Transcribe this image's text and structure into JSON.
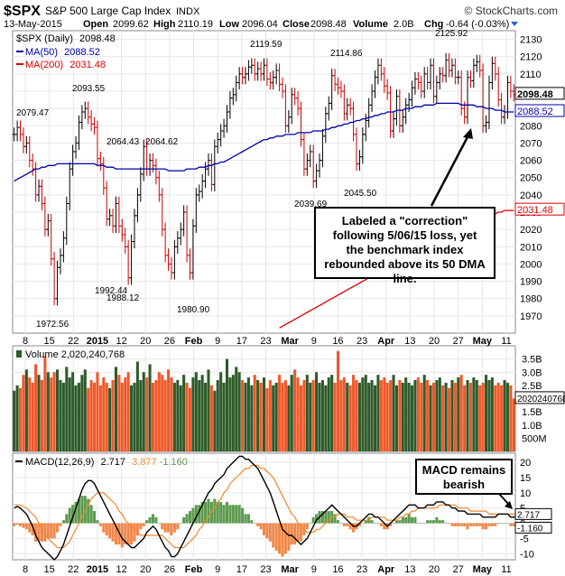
{
  "header": {
    "symbol": "$SPX",
    "name": "S&P 500 Large Cap Index",
    "exchange": "INDX",
    "date": "13-May-2015",
    "open_label": "Open",
    "open": "2099.62",
    "high_label": "High",
    "high": "2110.19",
    "low_label": "Low",
    "low": "2096.04",
    "close_label": "Close",
    "close": "2098.48",
    "volume_label": "Volume",
    "volume": "2.0B",
    "chg_label": "Chg",
    "chg": "-0.64 (-0.03%)",
    "watermark": "© StockCharts.com"
  },
  "colors": {
    "up": "#000000",
    "down": "#cc0000",
    "ma50": "#0000aa",
    "ma200": "#dd0000",
    "vol_up": "#2e5b2a",
    "vol_down": "#f0582a",
    "macd_line": "#000000",
    "signal_line": "#f0882a",
    "hist_pos": "#5d9a4f",
    "hist_neg": "#f0884a",
    "grid": "#e6e6e6"
  },
  "annotations": {
    "correction": "Labeled a \"correction\" following 5/06/15 loss, yet the benchmark index rebounded above its 50 DMA line.",
    "macd": "MACD remains bearish"
  },
  "chart_data": [
    {
      "type": "candlestick",
      "title": "$SPX (Daily) 2098.48",
      "legend": [
        {
          "name": "$SPX (Daily)",
          "value": "2098.48"
        },
        {
          "name": "MA(50)",
          "value": "2088.52"
        },
        {
          "name": "MA(200)",
          "value": "2031.48"
        }
      ],
      "ylim": [
        1960,
        2135
      ],
      "yticks": [
        1970,
        1980,
        1990,
        2000,
        2010,
        2020,
        2030,
        2040,
        2050,
        2060,
        2070,
        2080,
        2090,
        2100,
        2110,
        2120,
        2130
      ],
      "xticks": [
        "8",
        "15",
        "22",
        "2015",
        "12",
        "20",
        "26",
        "Feb",
        "9",
        "17",
        "23",
        "Mar",
        "9",
        "16",
        "23",
        "Apr",
        "13",
        "20",
        "27",
        "May",
        "11"
      ],
      "price_labels": [
        "2079.47",
        "2093.55",
        "1972.56",
        "1992.44",
        "2064.43",
        "1988.12",
        "2064.62",
        "1980.90",
        "2119.59",
        "2039.69",
        "2114.86",
        "2045.50",
        "2125.92"
      ],
      "last_price": "2098.48",
      "ma50_last": "2088.52",
      "ma200_last": "2031.48",
      "closes": [
        2075,
        2079,
        2075,
        2068,
        2070,
        2060,
        2055,
        2040,
        2045,
        2035,
        2020,
        2025,
        2003,
        1980,
        1998,
        2005,
        2015,
        2035,
        2055,
        2065,
        2070,
        2082,
        2088,
        2090,
        2085,
        2081,
        2079,
        2061,
        2058,
        2044,
        2026,
        2028,
        2022,
        2035,
        2022,
        2017,
        2010,
        1992,
        2013,
        2028,
        2040,
        2052,
        2068,
        2055,
        2060,
        2057,
        2050,
        2040,
        2020,
        2005,
        2000,
        1995,
        2010,
        2015,
        2020,
        2030,
        2005,
        1995,
        2022,
        2040,
        2042,
        2048,
        2055,
        2060,
        2046,
        2068,
        2072,
        2077,
        2080,
        2088,
        2096,
        2098,
        2105,
        2110,
        2108,
        2110,
        2114,
        2115,
        2110,
        2113,
        2110,
        2115,
        2107,
        2105,
        2108,
        2112,
        2104,
        2100,
        2080,
        2085,
        2098,
        2096,
        2090,
        2072,
        2055,
        2060,
        2065,
        2048,
        2054,
        2060,
        2074,
        2087,
        2093,
        2109,
        2104,
        2102,
        2100,
        2087,
        2092,
        2090,
        2075,
        2058,
        2062,
        2075,
        2083,
        2092,
        2100,
        2108,
        2115,
        2110,
        2103,
        2099,
        2077,
        2084,
        2097,
        2080,
        2085,
        2092,
        2095,
        2102,
        2107,
        2105,
        2100,
        2110,
        2105,
        2115,
        2097,
        2105,
        2110,
        2109,
        2118,
        2112,
        2115,
        2108,
        2108,
        2090,
        2085,
        2108,
        2106,
        2115,
        2117,
        2112,
        2080,
        2082,
        2105,
        2116,
        2110,
        2095,
        2085,
        2088,
        2105,
        2100,
        2098
      ],
      "ma50": [
        2048,
        2049,
        2050,
        2051,
        2052,
        2053,
        2054,
        2055,
        2055,
        2056,
        2056,
        2057,
        2057,
        2057,
        2058,
        2058,
        2058,
        2058,
        2058,
        2058,
        2058,
        2058,
        2058,
        2058,
        2058,
        2058,
        2058,
        2057,
        2057,
        2057,
        2056,
        2056,
        2056,
        2055,
        2055,
        2055,
        2055,
        2055,
        2055,
        2055,
        2055,
        2055,
        2055,
        2055,
        2055,
        2055,
        2055,
        2055,
        2055,
        2055,
        2054,
        2054,
        2054,
        2054,
        2054,
        2054,
        2055,
        2055,
        2055,
        2055,
        2056,
        2056,
        2056,
        2057,
        2057,
        2058,
        2058,
        2059,
        2059,
        2060,
        2061,
        2062,
        2063,
        2064,
        2065,
        2066,
        2067,
        2068,
        2069,
        2070,
        2071,
        2072,
        2072,
        2073,
        2073,
        2074,
        2074,
        2074,
        2075,
        2075,
        2075,
        2075,
        2076,
        2076,
        2076,
        2076,
        2076,
        2077,
        2077,
        2077,
        2077,
        2078,
        2078,
        2079,
        2079,
        2080,
        2080,
        2081,
        2081,
        2082,
        2082,
        2083,
        2083,
        2084,
        2084,
        2085,
        2085,
        2086,
        2086,
        2087,
        2087,
        2088,
        2088,
        2088,
        2089,
        2089,
        2089,
        2090,
        2090,
        2090,
        2091,
        2091,
        2091,
        2092,
        2092,
        2092,
        2092,
        2093,
        2093,
        2093,
        2093,
        2093,
        2093,
        2093,
        2093,
        2092,
        2092,
        2092,
        2092,
        2092,
        2091,
        2091,
        2091,
        2090,
        2090,
        2090,
        2089,
        2089,
        2089,
        2088,
        2088,
        2088,
        2088
      ],
      "ma200": [
        1963,
        1964,
        1965,
        1966,
        1967,
        1968,
        1969,
        1970,
        1971,
        1972,
        1973,
        1974,
        1975,
        1976,
        1977,
        1978,
        1979,
        1980,
        1981,
        1982,
        1983,
        1984,
        1985,
        1986,
        1987,
        1988,
        1989,
        1990,
        1991,
        1992,
        1993,
        1994,
        1995,
        1996,
        1997,
        1998,
        1999,
        2000,
        2001,
        2002,
        2003,
        2004,
        2005,
        2006,
        2007,
        2008,
        2009,
        2010,
        2011,
        2012,
        2013,
        2014,
        2015,
        2016,
        2017,
        2018,
        2019,
        2019,
        2020,
        2021,
        2022,
        2023,
        2023,
        2024,
        2025,
        2026,
        2026,
        2027,
        2028,
        2028,
        2029,
        2030,
        2030,
        2031,
        2031,
        2031,
        2031
      ]
    },
    {
      "type": "bar",
      "title": "Volume 2,020,240,768",
      "last_label": "2020240768",
      "ylim": [
        0,
        4.0
      ],
      "yticks": [
        "500M",
        "1.0B",
        "1.5B",
        "2.0B",
        "2.5B",
        "3.0B",
        "3.5B"
      ],
      "values": [
        2.3,
        2.5,
        2.4,
        2.9,
        3.1,
        2.8,
        2.6,
        3.3,
        2.9,
        2.7,
        3.6,
        3.0,
        2.8,
        3.0,
        3.1,
        2.7,
        2.6,
        3.2,
        2.8,
        3.0,
        2.5,
        2.6,
        2.9,
        3.1,
        2.4,
        2.7,
        2.6,
        3.0,
        2.5,
        2.8,
        2.6,
        2.4,
        2.7,
        3.2,
        2.9,
        2.6,
        2.8,
        3.0,
        2.5,
        2.6,
        3.4,
        2.7,
        3.0,
        2.8,
        3.3,
        2.6,
        2.7,
        3.0,
        2.9,
        2.7,
        3.1,
        2.8,
        2.6,
        2.7,
        2.5,
        2.9,
        2.6,
        2.4,
        2.8,
        3.0,
        2.7,
        2.9,
        2.6,
        3.1,
        2.5,
        2.3,
        2.7,
        3.0,
        2.6,
        3.5,
        2.8,
        2.9,
        3.2,
        3.0,
        2.7,
        2.6,
        2.8,
        2.5,
        2.9,
        2.7,
        2.6,
        2.8,
        2.4,
        2.7,
        2.5,
        2.6,
        2.9,
        2.6,
        2.7,
        2.5,
        2.9,
        3.1,
        2.8,
        2.5,
        2.7,
        2.9,
        2.6,
        2.7,
        3.0,
        2.6,
        2.7,
        2.5,
        2.8,
        2.9,
        2.6,
        3.8,
        2.7,
        2.8,
        2.6,
        2.5,
        2.9,
        2.7,
        2.6,
        2.8,
        2.9,
        2.6,
        2.7,
        2.5,
        2.9,
        2.7,
        2.8,
        2.6,
        2.7,
        2.9,
        2.5,
        2.7,
        2.6,
        2.8,
        2.6,
        2.5,
        2.7,
        2.8,
        2.6,
        2.9,
        2.7,
        2.5,
        2.6,
        2.7,
        2.8,
        2.5,
        2.6,
        2.4,
        2.7,
        2.6,
        2.8,
        2.9,
        2.5,
        2.7,
        2.6,
        2.8,
        2.7,
        2.5,
        2.6,
        2.9,
        2.7,
        2.8,
        2.5,
        2.6,
        2.5,
        2.7,
        2.6,
        2.5,
        2.0
      ]
    },
    {
      "type": "line",
      "title": "MACD(12,26,9)",
      "macd_value": "2.717",
      "signal_value": "3.877",
      "hist_value": "-1.160",
      "ylim": [
        -12,
        23
      ],
      "yticks": [
        "-10",
        "-5",
        "0",
        "5",
        "10",
        "15",
        "20"
      ],
      "macd": [
        5,
        5.5,
        5,
        4,
        3,
        1,
        -1,
        -4,
        -6,
        -8,
        -9,
        -10,
        -11,
        -12,
        -11,
        -9,
        -7,
        -4,
        -1,
        2,
        5,
        8,
        11,
        13,
        14,
        14,
        13,
        11,
        9,
        7,
        5,
        3,
        1,
        -1,
        -3,
        -5,
        -6,
        -7,
        -8,
        -8,
        -7,
        -6,
        -5,
        -3,
        -2,
        -1,
        -2,
        -4,
        -6,
        -8,
        -9,
        -11,
        -11,
        -10,
        -8,
        -6,
        -4,
        -2,
        0,
        2,
        4,
        6,
        8,
        10,
        11,
        13,
        14,
        15,
        16,
        18,
        19,
        20,
        21,
        22,
        22,
        21,
        21,
        20,
        19,
        18,
        16,
        14,
        12,
        10,
        7,
        4,
        1,
        -2,
        -3,
        -4,
        -4,
        -5,
        -6,
        -7,
        -6,
        -5,
        -3,
        -1,
        1,
        2,
        3,
        4,
        5,
        6,
        5,
        4,
        3,
        2,
        1,
        0,
        -1,
        -1,
        0,
        1,
        2,
        3,
        3,
        2,
        2,
        1,
        0,
        -1,
        0,
        1,
        2,
        3,
        4,
        5,
        6,
        6,
        6,
        5,
        5,
        5,
        6,
        6,
        6,
        7,
        7,
        7,
        6,
        6,
        5,
        5,
        4,
        4,
        4,
        3,
        3,
        3,
        3,
        3,
        2,
        2,
        2,
        2,
        2,
        3,
        3,
        3,
        3,
        2,
        2,
        2,
        3
      ],
      "signal": [
        6,
        6,
        6,
        5.5,
        5,
        4,
        3,
        2,
        0,
        -2,
        -3,
        -5,
        -6,
        -7,
        -8,
        -8,
        -8,
        -7,
        -6,
        -4,
        -2,
        0,
        2,
        4,
        6,
        8,
        9,
        10,
        10,
        10,
        9,
        8,
        7,
        6,
        4,
        3,
        1,
        0,
        -1,
        -2,
        -3,
        -4,
        -4,
        -4,
        -4,
        -4,
        -4,
        -4,
        -4,
        -5,
        -6,
        -7,
        -8,
        -8,
        -8,
        -8,
        -7,
        -6,
        -5,
        -4,
        -2,
        -1,
        1,
        2,
        4,
        5,
        7,
        8,
        10,
        11,
        13,
        14,
        15,
        16,
        17,
        18,
        18,
        19,
        19,
        19,
        18,
        18,
        17,
        16,
        15,
        13,
        11,
        9,
        7,
        5,
        3,
        2,
        0,
        -1,
        -2,
        -3,
        -3,
        -3,
        -2,
        -2,
        -1,
        0,
        1,
        2,
        2,
        3,
        3,
        3,
        2,
        2,
        2,
        1,
        1,
        1,
        1,
        1,
        2,
        2,
        2,
        2,
        2,
        1,
        1,
        1,
        1,
        2,
        2,
        3,
        3,
        4,
        4,
        5,
        5,
        5,
        5,
        5,
        5,
        5,
        6,
        6,
        6,
        6,
        6,
        6,
        5,
        5,
        5,
        5,
        4,
        4,
        4,
        4,
        4,
        4,
        3,
        3,
        3,
        3,
        3,
        3,
        3,
        3,
        3,
        3,
        3,
        4
      ]
    }
  ]
}
